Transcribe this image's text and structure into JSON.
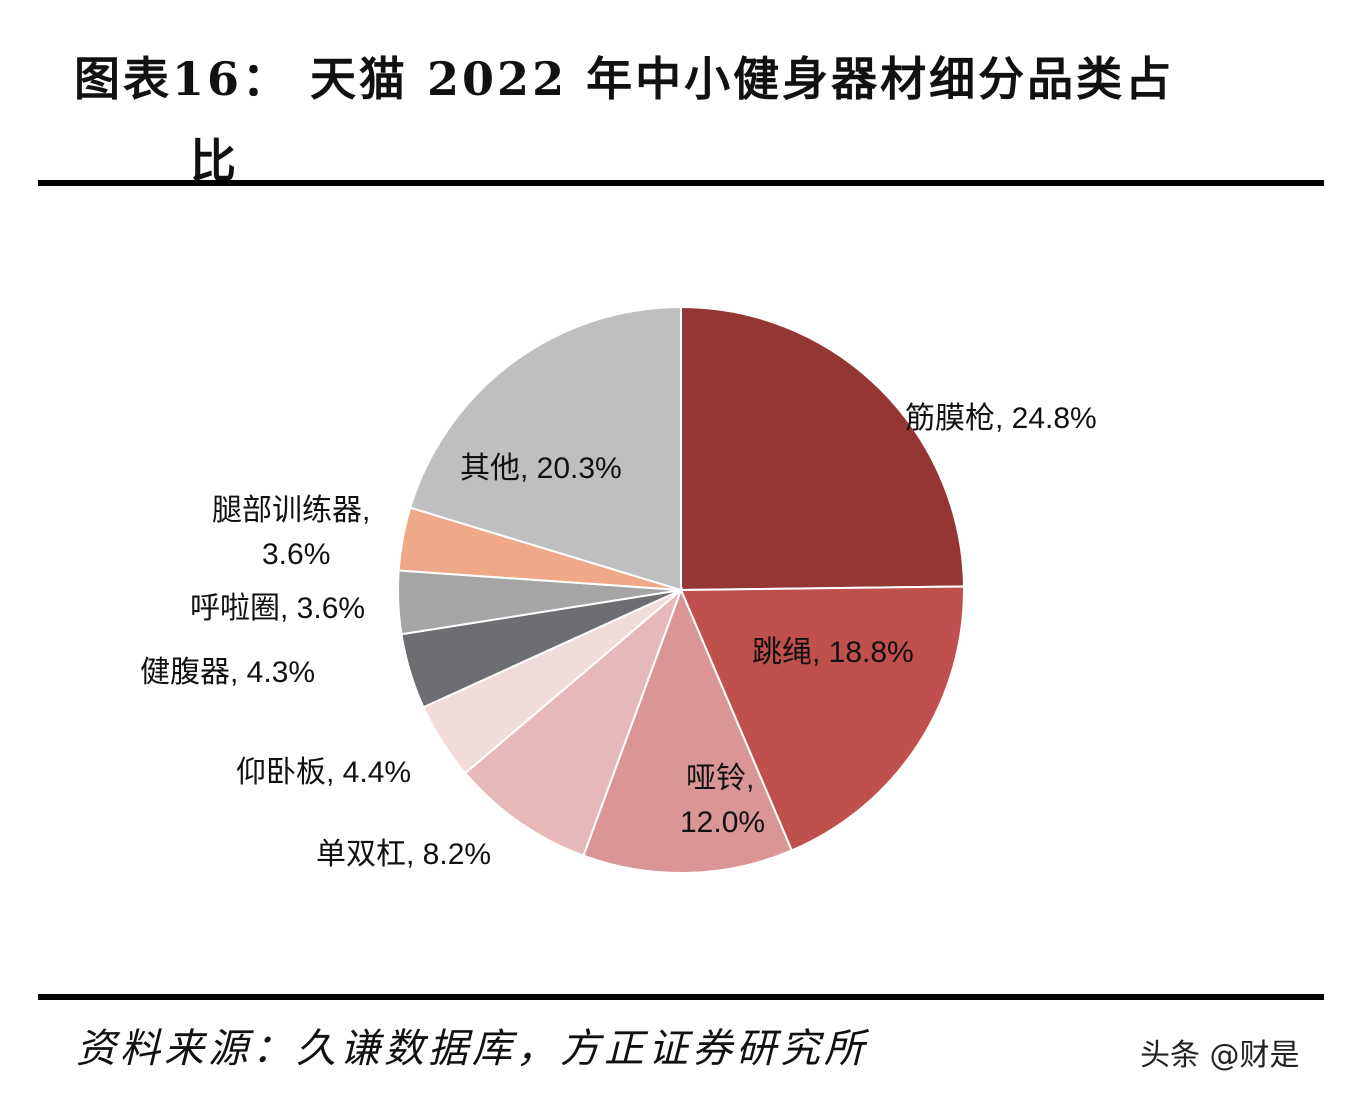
{
  "chart_data": {
    "type": "pie",
    "title": "图表16： 天猫 2022 年中小健身器材细分品类占比",
    "title_lines": [
      "图表16：  天猫 2022 年中小健身器材细分品类占",
      "比"
    ],
    "start": "12 o'clock, clockwise",
    "legend": "none (data labels)",
    "slices": [
      {
        "name": "筋膜枪",
        "value": 24.8,
        "color": "#943634",
        "label_lines": [
          "筋膜枪, 24.8%"
        ]
      },
      {
        "name": "跳绳",
        "value": 18.8,
        "color": "#c0504d",
        "label_lines": [
          "跳绳, 18.8%"
        ]
      },
      {
        "name": "哑铃",
        "value": 12.0,
        "color": "#d99694",
        "label_lines": [
          "哑铃,",
          "12.0%"
        ]
      },
      {
        "name": "单双杠",
        "value": 8.2,
        "color": "#e6b9b8",
        "label_lines": [
          "单双杠, 8.2%"
        ]
      },
      {
        "name": "仰卧板",
        "value": 4.4,
        "color": "#f2dcdb",
        "label_lines": [
          "仰卧板, 4.4%"
        ]
      },
      {
        "name": "健腹器",
        "value": 4.3,
        "color": "#6d6e71",
        "label_lines": [
          "健腹器, 4.3%"
        ]
      },
      {
        "name": "呼啦圈",
        "value": 3.6,
        "color": "#a5a5a5",
        "label_lines": [
          "呼啦圈, 3.6%"
        ]
      },
      {
        "name": "腿部训练器",
        "value": 3.6,
        "color": "#f0a988",
        "label_lines": [
          "腿部训练器,",
          "3.6%"
        ]
      },
      {
        "name": "其他",
        "value": 20.3,
        "color": "#bfbfc1",
        "label_lines": [
          "其他, 20.3%"
        ]
      }
    ]
  },
  "source": "资料来源：久谦数据库，方正证券研究所",
  "watermark": "头条 @财是"
}
